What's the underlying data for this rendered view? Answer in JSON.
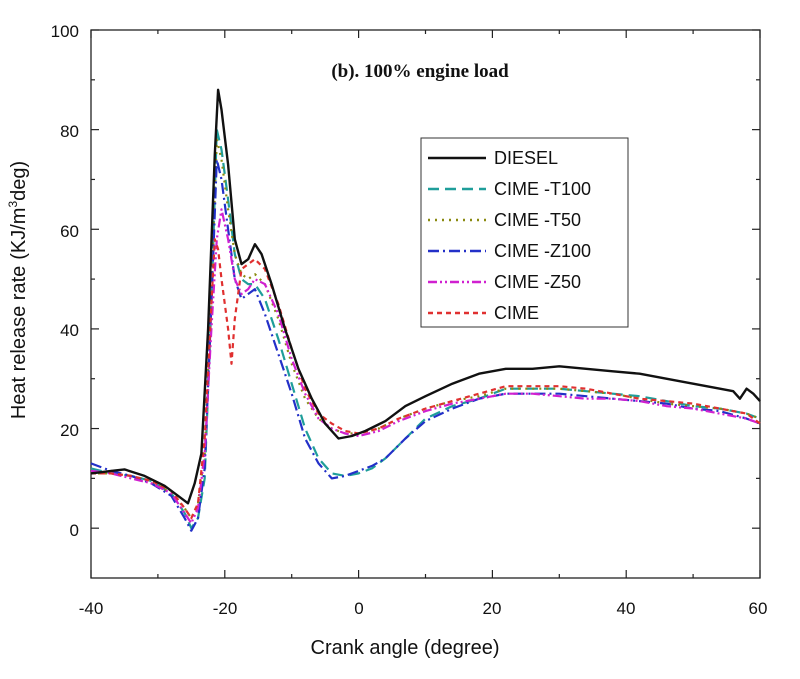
{
  "chart_data": {
    "type": "line",
    "title": "(b). 100% engine load",
    "xlabel": "Crank angle (degree)",
    "ylabel": "Heat release rate",
    "ylabel_unit_parts": [
      "(KJ/m",
      "3",
      "deg)"
    ],
    "xlim": [
      -40,
      60
    ],
    "ylim": [
      -10,
      100
    ],
    "x_tick_labels": [
      "-40",
      "-20",
      "0",
      "20",
      "40",
      "60"
    ],
    "y_tick_labels": [
      "0",
      "20",
      "40",
      "60",
      "80",
      "100"
    ],
    "x_ticks": [
      -40,
      -20,
      0,
      20,
      40,
      60
    ],
    "y_ticks": [
      0,
      20,
      40,
      60,
      80,
      100
    ],
    "legend_position": "upper-right",
    "series": [
      {
        "name": "DIESEL",
        "color": "#111111",
        "dash": "solid",
        "points": [
          [
            -40,
            11
          ],
          [
            -37,
            11.5
          ],
          [
            -35,
            11.8
          ],
          [
            -32,
            10.5
          ],
          [
            -29,
            8.5
          ],
          [
            -27,
            6.5
          ],
          [
            -25.5,
            5
          ],
          [
            -24.5,
            9
          ],
          [
            -23.5,
            15
          ],
          [
            -22.5,
            40
          ],
          [
            -21.5,
            75
          ],
          [
            -21,
            88
          ],
          [
            -20.5,
            84
          ],
          [
            -19.5,
            73
          ],
          [
            -18.5,
            58
          ],
          [
            -17.5,
            53
          ],
          [
            -16.5,
            54
          ],
          [
            -15.5,
            57
          ],
          [
            -14.5,
            55
          ],
          [
            -13,
            49
          ],
          [
            -11,
            40
          ],
          [
            -9,
            32
          ],
          [
            -7,
            26
          ],
          [
            -5,
            21
          ],
          [
            -3,
            18
          ],
          [
            -1,
            18.5
          ],
          [
            1,
            19.5
          ],
          [
            4,
            21.5
          ],
          [
            7,
            24.5
          ],
          [
            10,
            26.5
          ],
          [
            14,
            29
          ],
          [
            18,
            31
          ],
          [
            22,
            32
          ],
          [
            26,
            32
          ],
          [
            30,
            32.5
          ],
          [
            34,
            32
          ],
          [
            38,
            31.5
          ],
          [
            42,
            31
          ],
          [
            46,
            30
          ],
          [
            50,
            29
          ],
          [
            54,
            28
          ],
          [
            56,
            27.5
          ],
          [
            57,
            26
          ],
          [
            58,
            28
          ],
          [
            59,
            27
          ],
          [
            60,
            25.5
          ]
        ]
      },
      {
        "name": "CIME -T100",
        "color": "#1f9e9a",
        "dash": "dashed",
        "points": [
          [
            -40,
            12
          ],
          [
            -37,
            11
          ],
          [
            -34,
            10.5
          ],
          [
            -31,
            9.5
          ],
          [
            -28,
            7
          ],
          [
            -26,
            3
          ],
          [
            -25,
            0
          ],
          [
            -24,
            2
          ],
          [
            -23,
            10
          ],
          [
            -22,
            45
          ],
          [
            -21.2,
            80
          ],
          [
            -20.5,
            76
          ],
          [
            -19.5,
            66
          ],
          [
            -18.5,
            55
          ],
          [
            -17.5,
            50
          ],
          [
            -16.5,
            49
          ],
          [
            -15.5,
            49
          ],
          [
            -14,
            46
          ],
          [
            -12,
            38
          ],
          [
            -10,
            29
          ],
          [
            -8,
            20
          ],
          [
            -6,
            14
          ],
          [
            -4,
            11
          ],
          [
            -2,
            10.5
          ],
          [
            0,
            11
          ],
          [
            2,
            12
          ],
          [
            4,
            14
          ],
          [
            7,
            18
          ],
          [
            10,
            22
          ],
          [
            14,
            24.5
          ],
          [
            18,
            26
          ],
          [
            22,
            28
          ],
          [
            26,
            28
          ],
          [
            30,
            28
          ],
          [
            34,
            27.5
          ],
          [
            38,
            27
          ],
          [
            42,
            26.5
          ],
          [
            46,
            25.5
          ],
          [
            50,
            24.5
          ],
          [
            54,
            24
          ],
          [
            58,
            23
          ],
          [
            60,
            22
          ]
        ]
      },
      {
        "name": "CIME -T50",
        "color": "#8a8a10",
        "dash": "dotted",
        "points": [
          [
            -40,
            11
          ],
          [
            -37,
            11
          ],
          [
            -34,
            10.5
          ],
          [
            -31,
            9.5
          ],
          [
            -28,
            7
          ],
          [
            -26,
            4
          ],
          [
            -25,
            2
          ],
          [
            -24,
            5
          ],
          [
            -23,
            15
          ],
          [
            -22,
            48
          ],
          [
            -21.2,
            78
          ],
          [
            -20.5,
            74
          ],
          [
            -19.5,
            64
          ],
          [
            -18.5,
            55
          ],
          [
            -17.5,
            51
          ],
          [
            -16.5,
            50
          ],
          [
            -15.5,
            51
          ],
          [
            -14,
            49
          ],
          [
            -12,
            42
          ],
          [
            -10,
            33
          ],
          [
            -8,
            26
          ],
          [
            -6,
            22
          ],
          [
            -4,
            20
          ],
          [
            -2,
            19
          ],
          [
            0,
            19
          ],
          [
            3,
            20
          ],
          [
            6,
            22
          ],
          [
            10,
            24
          ],
          [
            14,
            25.5
          ],
          [
            18,
            26.5
          ],
          [
            22,
            28
          ],
          [
            26,
            28
          ],
          [
            30,
            28
          ],
          [
            34,
            27.5
          ],
          [
            38,
            27
          ],
          [
            42,
            26
          ],
          [
            46,
            25
          ],
          [
            50,
            24.5
          ],
          [
            54,
            24
          ],
          [
            58,
            23
          ],
          [
            60,
            22
          ]
        ]
      },
      {
        "name": "CIME -Z100",
        "color": "#2330c8",
        "dash": "dashdot",
        "points": [
          [
            -40,
            13
          ],
          [
            -37,
            11.5
          ],
          [
            -34,
            10.5
          ],
          [
            -31,
            9
          ],
          [
            -28,
            6.5
          ],
          [
            -26,
            2
          ],
          [
            -25,
            -0.5
          ],
          [
            -24,
            2
          ],
          [
            -23,
            12
          ],
          [
            -22,
            45
          ],
          [
            -21.2,
            74
          ],
          [
            -20.5,
            70
          ],
          [
            -19.5,
            60
          ],
          [
            -18.5,
            50
          ],
          [
            -17.5,
            46
          ],
          [
            -16.5,
            47
          ],
          [
            -15.5,
            48
          ],
          [
            -14,
            43
          ],
          [
            -12,
            35
          ],
          [
            -10,
            27
          ],
          [
            -8,
            18
          ],
          [
            -6,
            13
          ],
          [
            -4,
            10
          ],
          [
            -2,
            10.5
          ],
          [
            0,
            11.5
          ],
          [
            2,
            12.5
          ],
          [
            4,
            14
          ],
          [
            7,
            18
          ],
          [
            10,
            21.5
          ],
          [
            14,
            24
          ],
          [
            18,
            26
          ],
          [
            22,
            27
          ],
          [
            26,
            27
          ],
          [
            30,
            27
          ],
          [
            34,
            26.5
          ],
          [
            38,
            26
          ],
          [
            42,
            25.5
          ],
          [
            46,
            25
          ],
          [
            50,
            24
          ],
          [
            54,
            23.5
          ],
          [
            58,
            22
          ],
          [
            60,
            21
          ]
        ]
      },
      {
        "name": "CIME -Z50",
        "color": "#d020d0",
        "dash": "dashdotdot",
        "points": [
          [
            -40,
            11.5
          ],
          [
            -37,
            11
          ],
          [
            -34,
            10
          ],
          [
            -31,
            9
          ],
          [
            -28,
            7
          ],
          [
            -26,
            3
          ],
          [
            -25,
            1
          ],
          [
            -24,
            4
          ],
          [
            -23,
            15
          ],
          [
            -22,
            40
          ],
          [
            -21.2,
            58
          ],
          [
            -20.5,
            64
          ],
          [
            -19.5,
            58
          ],
          [
            -18.5,
            50
          ],
          [
            -17.5,
            47
          ],
          [
            -16.5,
            48
          ],
          [
            -15.5,
            50
          ],
          [
            -14,
            49
          ],
          [
            -12,
            43
          ],
          [
            -10,
            34
          ],
          [
            -8,
            27
          ],
          [
            -6,
            22
          ],
          [
            -4,
            20
          ],
          [
            -2,
            19
          ],
          [
            0,
            18.5
          ],
          [
            3,
            19.5
          ],
          [
            6,
            21.5
          ],
          [
            10,
            23.5
          ],
          [
            14,
            25
          ],
          [
            18,
            26
          ],
          [
            22,
            27
          ],
          [
            26,
            27
          ],
          [
            30,
            26.5
          ],
          [
            34,
            26
          ],
          [
            38,
            26
          ],
          [
            42,
            25.5
          ],
          [
            46,
            24.5
          ],
          [
            50,
            24
          ],
          [
            54,
            23
          ],
          [
            58,
            22
          ],
          [
            60,
            21
          ]
        ]
      },
      {
        "name": "CIME",
        "color": "#e03030",
        "dash": "shortdash",
        "points": [
          [
            -40,
            11
          ],
          [
            -37,
            11
          ],
          [
            -34,
            10.5
          ],
          [
            -31,
            9.5
          ],
          [
            -28,
            7.5
          ],
          [
            -26,
            4
          ],
          [
            -25,
            2
          ],
          [
            -24,
            5
          ],
          [
            -23,
            18
          ],
          [
            -22,
            45
          ],
          [
            -21.5,
            58
          ],
          [
            -21,
            56
          ],
          [
            -20.5,
            50
          ],
          [
            -20,
            45
          ],
          [
            -19.5,
            40
          ],
          [
            -19,
            33
          ],
          [
            -18.5,
            42
          ],
          [
            -17.5,
            52
          ],
          [
            -16.5,
            53
          ],
          [
            -15.5,
            54
          ],
          [
            -14,
            52
          ],
          [
            -12,
            45
          ],
          [
            -10,
            36
          ],
          [
            -8,
            28
          ],
          [
            -6,
            23
          ],
          [
            -4,
            21
          ],
          [
            -2,
            19.5
          ],
          [
            0,
            19
          ],
          [
            3,
            20
          ],
          [
            6,
            22
          ],
          [
            10,
            24
          ],
          [
            14,
            25.5
          ],
          [
            18,
            27
          ],
          [
            22,
            28.5
          ],
          [
            26,
            28.5
          ],
          [
            30,
            28.5
          ],
          [
            34,
            28
          ],
          [
            38,
            27
          ],
          [
            42,
            26
          ],
          [
            46,
            25.5
          ],
          [
            50,
            25
          ],
          [
            54,
            24
          ],
          [
            58,
            23
          ],
          [
            60,
            21
          ]
        ]
      }
    ]
  }
}
